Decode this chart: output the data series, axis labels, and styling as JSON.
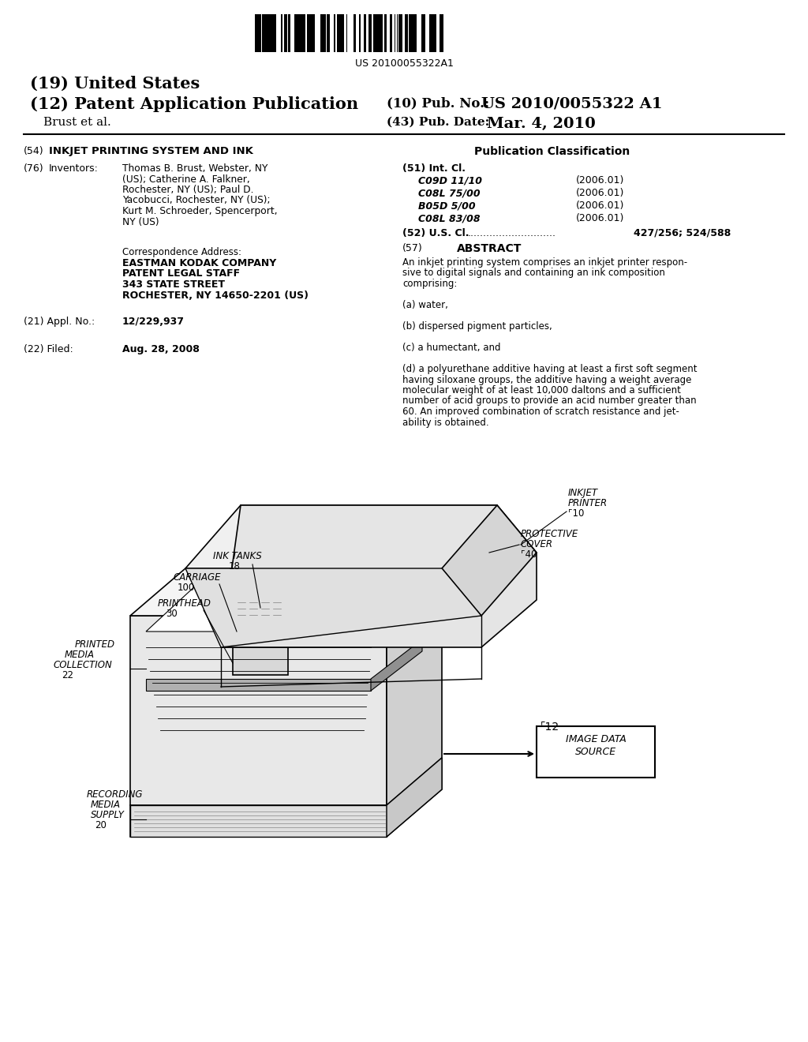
{
  "bg_color": "#ffffff",
  "barcode_text": "US 20100055322A1",
  "title_19": "(19) United States",
  "title_12": "(12) Patent Application Publication",
  "pub_no_label": "(10) Pub. No.:",
  "pub_no": "US 2010/0055322 A1",
  "author": "Brust et al.",
  "pub_date_label": "(43) Pub. Date:",
  "pub_date": "Mar. 4, 2010",
  "section54_label": "(54)",
  "section54": "INKJET PRINTING SYSTEM AND INK",
  "pub_class_header": "Publication Classification",
  "int_cl_label": "(51) Int. Cl.",
  "int_cl_entries": [
    [
      "C09D 11/10",
      "(2006.01)"
    ],
    [
      "C08L 75/00",
      "(2006.01)"
    ],
    [
      "B05D 5/00",
      "(2006.01)"
    ],
    [
      "C08L 83/08",
      "(2006.01)"
    ]
  ],
  "us_cl_label": "(52) U.S. Cl.",
  "us_cl_value": "427/256; 524/588",
  "abstract_label": "(57)",
  "abstract_header": "ABSTRACT",
  "abstract_text": "An inkjet printing system comprises an inkjet printer responsive to digital signals and containing an ink composition comprising:\n\n(a) water,\n\n(b) dispersed pigment particles,\n\n(c) a humectant, and\n\n(d) a polyurethane additive having at least a first soft segment having siloxane groups, the additive having a weight average molecular weight of at least 10,000 daltons and a sufficient number of acid groups to provide an acid number greater than 60. An improved combination of scratch resistance and jetability is obtained.",
  "section76_label": "(76) Inventors:",
  "inventors_text": "Thomas B. Brust, Webster, NY\n(US); Catherine A. Falkner,\nRochester, NY (US); Paul D.\nYacobucci, Rochester, NY (US);\nKurt M. Schroeder, Spencerport,\nNY (US)",
  "corr_addr_label": "Correspondence Address:",
  "corr_addr_text": "EASTMAN KODAK COMPANY\nPATENT LEGAL STAFF\n343 STATE STREET\nROCHESTER, NY 14650-2201 (US)",
  "appl_no_label": "(21) Appl. No.:",
  "appl_no": "12/229,937",
  "filed_label": "(22) Filed:",
  "filed_date": "Aug. 28, 2008",
  "diagram_labels": {
    "inkjet_printer": "INKJET\nPRINTER",
    "printer_num": "10",
    "protective_cover": "PROTECTIVE\nCOVER",
    "cover_num": "40",
    "ink_tanks": "INK TANKS\n18",
    "carriage": "CARRIAGE\n100",
    "printhead": "PRINTHEAD\n30",
    "printed_media": "PRINTED\nMEDIA\nCOLLECTION\n22",
    "recording_media": "RECORDING\nMEDIA\nSUPPLY\n20",
    "image_data": "IMAGE DATA\nSOURCE",
    "image_data_num": "12"
  }
}
